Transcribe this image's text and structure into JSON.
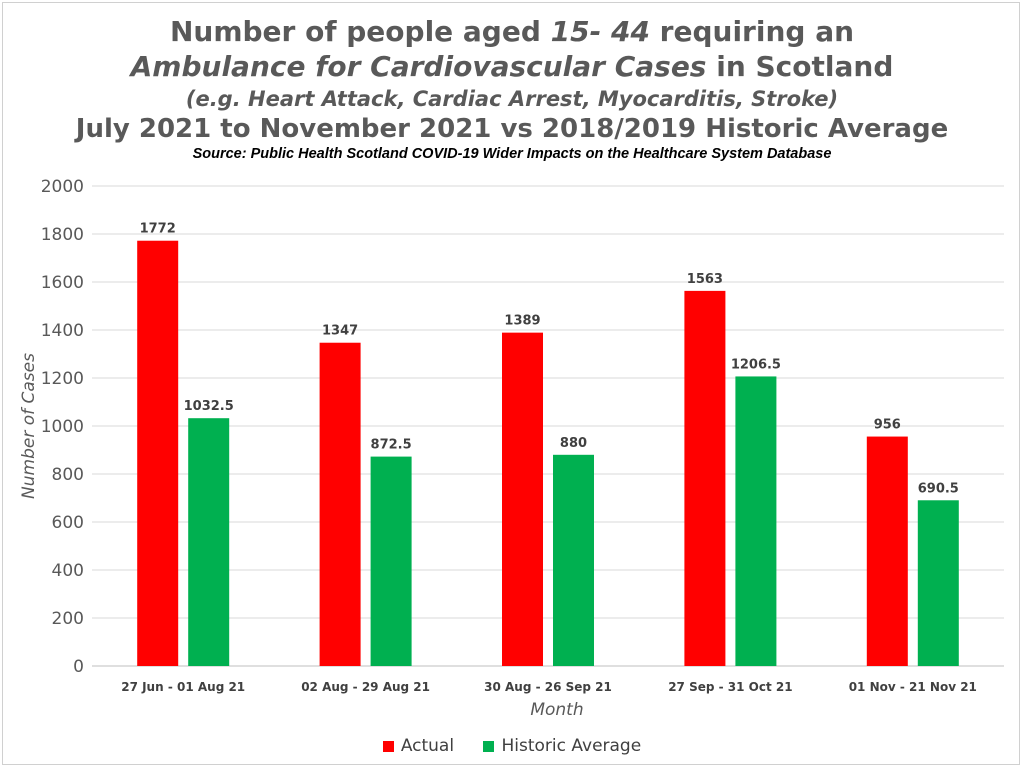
{
  "title": {
    "l1a": "Number of people aged ",
    "l1b": "15- 44",
    "l1c": " requiring an",
    "l2a": "Ambulance for Cardiovascular Cases",
    "l2b": " in Scotland",
    "l3": "(e.g. Heart Attack, Cardiac Arrest, Myocarditis, Stroke)",
    "l4": "July 2021 to November 2021 vs 2018/2019 Historic Average",
    "source": "Source: Public Health Scotland COVID-19 Wider Impacts on the Healthcare System Database"
  },
  "chart_data": {
    "type": "bar",
    "categories": [
      "27 Jun - 01 Aug 21",
      "02 Aug - 29 Aug 21",
      "30 Aug - 26 Sep 21",
      "27 Sep - 31 Oct 21",
      "01 Nov - 21 Nov 21"
    ],
    "series": [
      {
        "name": "Actual",
        "color": "#ff0000",
        "values": [
          1772,
          1347,
          1389,
          1563,
          956
        ],
        "labels": [
          "1772",
          "1347",
          "1389",
          "1563",
          "956"
        ]
      },
      {
        "name": "Historic Average",
        "color": "#00b050",
        "values": [
          1032.5,
          872.5,
          880,
          1206.5,
          690.5
        ],
        "labels": [
          "1032.5",
          "872.5",
          "880",
          "1206.5",
          "690.5"
        ]
      }
    ],
    "xlabel": "Month",
    "ylabel": "Number of Cases",
    "ylim": [
      0,
      2000
    ],
    "yticks": [
      0,
      200,
      400,
      600,
      800,
      1000,
      1200,
      1400,
      1600,
      1800,
      2000
    ],
    "grid": true,
    "legend": "bottom"
  }
}
